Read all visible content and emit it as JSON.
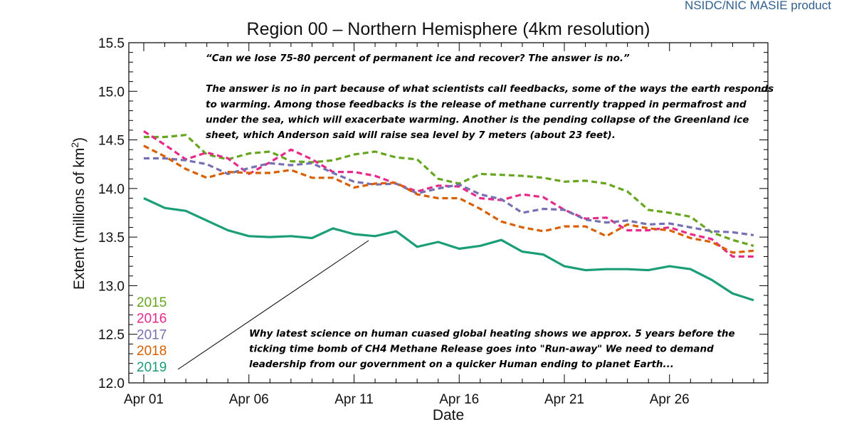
{
  "product_label": "NSIDC/NIC MASIE product",
  "chart_data": {
    "type": "line",
    "title": "Region 00 – Northern Hemisphere (4km resolution)",
    "xlabel": "Date",
    "ylabel_prefix": "Extent (millions of km",
    "ylabel_sup": "2",
    "ylabel_suffix": ")",
    "ylim": [
      12.0,
      15.5
    ],
    "xlim": [
      "Apr 01",
      "Apr 30"
    ],
    "x": [
      "Apr 01",
      "Apr 02",
      "Apr 03",
      "Apr 04",
      "Apr 05",
      "Apr 06",
      "Apr 07",
      "Apr 08",
      "Apr 09",
      "Apr 10",
      "Apr 11",
      "Apr 12",
      "Apr 13",
      "Apr 14",
      "Apr 15",
      "Apr 16",
      "Apr 17",
      "Apr 18",
      "Apr 19",
      "Apr 20",
      "Apr 21",
      "Apr 22",
      "Apr 23",
      "Apr 24",
      "Apr 25",
      "Apr 26",
      "Apr 27",
      "Apr 28",
      "Apr 29",
      "Apr 30"
    ],
    "x_tick_labels": [
      "Apr 01",
      "Apr 06",
      "Apr 11",
      "Apr 16",
      "Apr 21",
      "Apr 26"
    ],
    "y_tick_labels": [
      "12.0",
      "12.5",
      "13.0",
      "13.5",
      "14.0",
      "14.5",
      "15.0",
      "15.5"
    ],
    "grid": false,
    "legend_position": "bottom-left",
    "series": [
      {
        "name": "2015",
        "color": "#66a61e",
        "dashed": true,
        "values": [
          14.53,
          14.53,
          14.55,
          14.35,
          14.3,
          14.36,
          14.38,
          14.28,
          14.27,
          14.29,
          14.35,
          14.38,
          14.32,
          14.3,
          14.1,
          14.05,
          14.15,
          14.14,
          14.13,
          14.11,
          14.07,
          14.08,
          14.05,
          13.97,
          13.78,
          13.75,
          13.71,
          13.55,
          13.47,
          13.41
        ]
      },
      {
        "name": "2016",
        "color": "#e7298a",
        "dashed": true,
        "values": [
          14.59,
          14.45,
          14.3,
          14.37,
          14.31,
          14.15,
          14.27,
          14.4,
          14.3,
          14.17,
          14.17,
          14.13,
          14.05,
          13.97,
          14.03,
          14.02,
          13.9,
          13.88,
          13.94,
          13.91,
          13.78,
          13.69,
          13.7,
          13.57,
          13.57,
          13.6,
          13.53,
          13.48,
          13.3,
          13.3
        ]
      },
      {
        "name": "2017",
        "color": "#7570b3",
        "dashed": true,
        "values": [
          14.31,
          14.31,
          14.29,
          14.25,
          14.15,
          14.21,
          14.26,
          14.24,
          14.26,
          14.16,
          14.07,
          14.04,
          14.05,
          13.95,
          14.0,
          14.04,
          13.94,
          13.89,
          13.75,
          13.79,
          13.78,
          13.68,
          13.65,
          13.67,
          13.63,
          13.64,
          13.6,
          13.56,
          13.55,
          13.52
        ]
      },
      {
        "name": "2018",
        "color": "#d95f02",
        "dashed": true,
        "values": [
          14.44,
          14.33,
          14.2,
          14.11,
          14.17,
          14.16,
          14.16,
          14.19,
          14.11,
          14.11,
          14.01,
          14.05,
          14.06,
          13.94,
          13.9,
          13.9,
          13.79,
          13.66,
          13.6,
          13.56,
          13.61,
          13.61,
          13.51,
          13.63,
          13.59,
          13.57,
          13.49,
          13.45,
          13.34,
          13.36
        ]
      },
      {
        "name": "2019",
        "color": "#1b9e77",
        "dashed": false,
        "values": [
          13.9,
          13.8,
          13.77,
          13.67,
          13.57,
          13.51,
          13.5,
          13.51,
          13.49,
          13.59,
          13.53,
          13.51,
          13.56,
          13.4,
          13.45,
          13.38,
          13.41,
          13.47,
          13.35,
          13.32,
          13.2,
          13.16,
          13.17,
          13.17,
          13.16,
          13.2,
          13.17,
          13.06,
          12.92,
          12.85
        ]
      }
    ],
    "annotations": {
      "quote_lines": [
        "“Can we lose 75-80 percent of permanent ice and recover? The answer is no.”",
        "",
        "The answer is no in part because of what scientists call feedbacks, some of the ways the earth responds",
        "to warming. Among those feedbacks is the release of methane currently trapped in permafrost and",
        "under the sea, which will exacerbate warming. Another is the pending collapse of the Greenland ice",
        "sheet, which Anderson said will raise sea level by 7 meters (about 23 feet)."
      ],
      "comment_lines": [
        "Why latest science on human cuased global heating shows we approx. 5 years before the",
        "ticking time bomb of CH4 Methane Release goes into \"Run-away\" We need to demand",
        "leadership from our government on a quicker Human ending to planet Earth..."
      ]
    }
  }
}
